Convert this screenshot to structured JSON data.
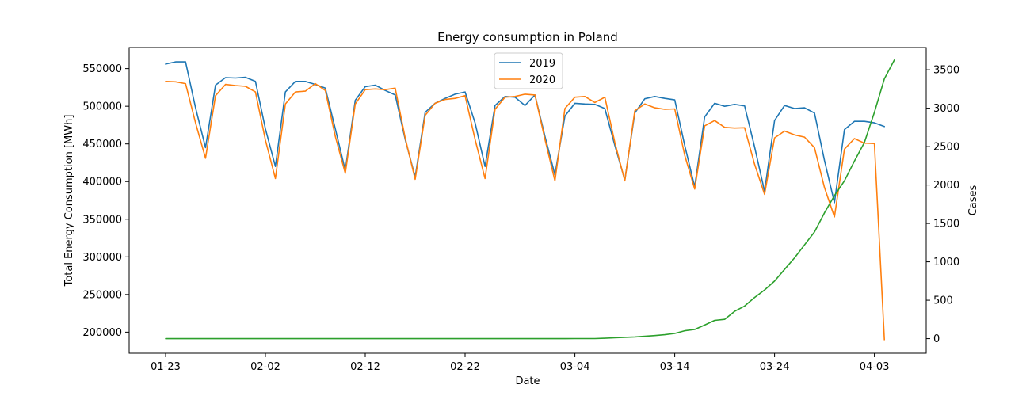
{
  "chart_data": {
    "type": "line",
    "title": "Energy consumption in Poland",
    "xlabel": "Date",
    "ylabel": "Total Energy Consumption [MWh]",
    "y2label": "Cases",
    "ylim": [
      172000,
      578000
    ],
    "y2lim": [
      -190,
      3790
    ],
    "x_tick_labels": [
      "01-23",
      "02-02",
      "02-12",
      "02-22",
      "03-04",
      "03-14",
      "03-24",
      "04-03"
    ],
    "x_tick_days": [
      0,
      10,
      20,
      30,
      41,
      51,
      61,
      71
    ],
    "y_ticks": [
      200000,
      250000,
      300000,
      350000,
      400000,
      450000,
      500000,
      550000
    ],
    "y_tick_labels": [
      "200000",
      "250000",
      "300000",
      "350000",
      "400000",
      "450000",
      "500000",
      "550000"
    ],
    "y2_ticks": [
      0,
      500,
      1000,
      1500,
      2000,
      2500,
      3000,
      3500
    ],
    "y2_tick_labels": [
      "0",
      "500",
      "1000",
      "1500",
      "2000",
      "2500",
      "3000",
      "3500"
    ],
    "legend_position": "top-center",
    "colors": {
      "s2019": "#1f77b4",
      "s2020": "#ff7f0e",
      "cases": "#2ca02c",
      "y2label": "#2ca02c"
    },
    "series": [
      {
        "name": "2019",
        "axis": "left",
        "values": [
          556000,
          559000,
          559000,
          498000,
          445000,
          528000,
          538000,
          537500,
          538500,
          533000,
          470000,
          420000,
          519000,
          533000,
          533000,
          529000,
          524000,
          470000,
          415000,
          508000,
          526000,
          528000,
          521000,
          515000,
          456000,
          406000,
          492000,
          504000,
          510500,
          516000,
          519000,
          478000,
          420000,
          501000,
          513000,
          512000,
          501000,
          515000,
          460000,
          409000,
          487000,
          504000,
          503000,
          502500,
          497000,
          448000,
          402000,
          491000,
          510000,
          513000,
          510500,
          508500,
          448000,
          393000,
          486000,
          504000,
          500000,
          502500,
          500500,
          446000,
          387000,
          481000,
          501000,
          497000,
          498000,
          491000,
          428000,
          372000,
          469000,
          480000,
          480000,
          478000,
          473000
        ]
      },
      {
        "name": "2020",
        "axis": "left",
        "values": [
          533000,
          532500,
          530000,
          478000,
          431000,
          514000,
          529000,
          527500,
          526500,
          519000,
          455000,
          404000,
          503000,
          519000,
          520000,
          530000,
          521000,
          460000,
          411000,
          503000,
          522000,
          523000,
          522000,
          524000,
          458000,
          403000,
          488000,
          504000,
          509000,
          510500,
          514000,
          456000,
          404000,
          496000,
          512000,
          513000,
          516000,
          515000,
          456000,
          401000,
          497000,
          512000,
          513000,
          505000,
          512000,
          452000,
          401000,
          494000,
          503000,
          498000,
          496000,
          496500,
          435000,
          390000,
          474000,
          481000,
          472000,
          471000,
          471500,
          423000,
          383000,
          458000,
          467000,
          462000,
          459000,
          445000,
          392000,
          353000,
          443000,
          457000,
          451000,
          450500,
          190000
        ]
      },
      {
        "name": "Cases",
        "axis": "right",
        "values": [
          0,
          0,
          0,
          0,
          0,
          0,
          0,
          0,
          0,
          0,
          0,
          0,
          0,
          0,
          0,
          0,
          0,
          0,
          0,
          0,
          0,
          0,
          0,
          0,
          0,
          0,
          0,
          0,
          0,
          0,
          0,
          0,
          0,
          0,
          0,
          0,
          0,
          0,
          0,
          0,
          0,
          1,
          1,
          1,
          5,
          11,
          17,
          22,
          31,
          40,
          51,
          68,
          103,
          119,
          177,
          238,
          251,
          355,
          425,
          536,
          634,
          749,
          901,
          1051,
          1221,
          1389,
          1638,
          1862,
          2055,
          2311,
          2554,
          2946,
          3383,
          3627
        ]
      }
    ]
  }
}
